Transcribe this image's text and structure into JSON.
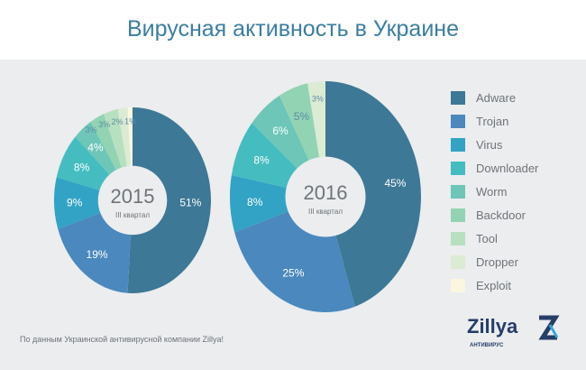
{
  "title": "Вирусная активность в Украине",
  "footnote": "По данным Украинской антивирусной компании Zillya!",
  "logo": {
    "word": "Zillya",
    "sub": "АНТИВИРУС"
  },
  "colors": {
    "Adware": "#3d7896",
    "Trojan": "#4a88bd",
    "Virus": "#32a3c4",
    "Downloader": "#45bcc0",
    "Worm": "#6dc6b7",
    "Backdoor": "#92d3b4",
    "Tool": "#b7e0c0",
    "Dropper": "#dcebd3",
    "Exploit": "#fbf6e0"
  },
  "chart_data": [
    {
      "type": "pie",
      "donut": true,
      "center_label": "2015",
      "center_sub": "III квартал",
      "legend": "right",
      "categories": [
        "Adware",
        "Trojan",
        "Virus",
        "Downloader",
        "Worm",
        "Backdoor",
        "Tool",
        "Dropper",
        "Exploit"
      ],
      "values": [
        51,
        19,
        9,
        8,
        4,
        3,
        3,
        2,
        1
      ],
      "labels": [
        "51%",
        "19%",
        "9%",
        "8%",
        "4%",
        "3%",
        "3%",
        "2%",
        "1%"
      ]
    },
    {
      "type": "pie",
      "donut": true,
      "center_label": "2016",
      "center_sub": "III квартал",
      "legend": "right",
      "categories": [
        "Adware",
        "Trojan",
        "Virus",
        "Downloader",
        "Worm",
        "Backdoor",
        "Dropper"
      ],
      "values": [
        45,
        25,
        8,
        8,
        6,
        5,
        3
      ],
      "labels": [
        "45%",
        "25%",
        "8%",
        "8%",
        "6%",
        "5%",
        "3%"
      ]
    }
  ],
  "legend": [
    "Adware",
    "Trojan",
    "Virus",
    "Downloader",
    "Worm",
    "Backdoor",
    "Tool",
    "Dropper",
    "Exploit"
  ]
}
